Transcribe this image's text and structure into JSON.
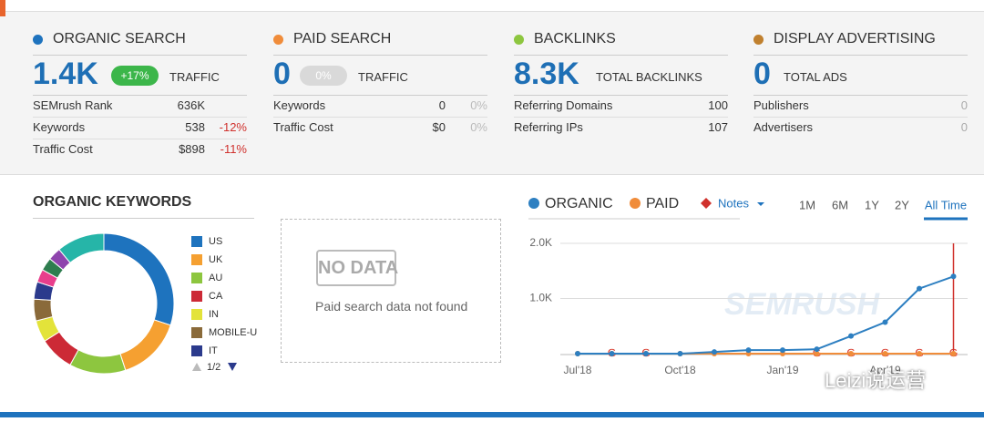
{
  "cards": [
    {
      "title": "ORGANIC SEARCH",
      "color": "#1e73be",
      "value": "1.4K",
      "badge": "+17%",
      "unit": "TRAFFIC",
      "rows": [
        [
          "SEMrush Rank",
          "636K"
        ],
        [
          "Keywords",
          "538",
          "-12%"
        ],
        [
          "Traffic Cost",
          "$898",
          "-11%"
        ]
      ]
    },
    {
      "title": "PAID SEARCH",
      "color": "#f08c3a",
      "value": "0",
      "badge": "0%",
      "unit": "TRAFFIC",
      "rows": [
        [
          "Keywords",
          "0",
          "0%"
        ],
        [
          "Traffic Cost",
          "$0",
          "0%"
        ]
      ]
    },
    {
      "title": "BACKLINKS",
      "color": "#8dc63f",
      "value": "8.3K",
      "unit": "TOTAL BACKLINKS",
      "rows": [
        [
          "Referring Domains",
          "100"
        ],
        [
          "Referring IPs",
          "107"
        ]
      ]
    },
    {
      "title": "DISPLAY ADVERTISING",
      "color": "#c0802e",
      "value": "0",
      "unit": "TOTAL ADS",
      "rows": [
        [
          "Publishers",
          "0"
        ],
        [
          "Advertisers",
          "0"
        ]
      ]
    }
  ],
  "keywords": {
    "type": "pie",
    "title": "ORGANIC KEYWORDS",
    "legend": [
      "US",
      "UK",
      "AU",
      "CA",
      "IN",
      "MOBILE-U",
      "IT"
    ],
    "page": "1/2",
    "segments": [
      30,
      15,
      13,
      8,
      5,
      5,
      4,
      3,
      3,
      3,
      11
    ],
    "colors": [
      "#1e73be",
      "#f5a031",
      "#8dc63f",
      "#cc2a36",
      "#e3e33a",
      "#8a6a3a",
      "#2b3a8c",
      "#e83e8c",
      "#2e7d4f",
      "#8e44ad",
      "#26b5a8"
    ]
  },
  "no_data": {
    "stamp": "NO DATA",
    "message": "Paid search data not found"
  },
  "trend": {
    "type": "line",
    "notes": "Notes",
    "periods": [
      "1M",
      "6M",
      "1Y",
      "2Y",
      "All Time"
    ],
    "active_period": 4,
    "categories": [
      "Jul'18",
      null,
      null,
      "Oct'18",
      null,
      null,
      "Jan'19",
      null,
      null,
      "Apr'19",
      null,
      null
    ],
    "series": [
      {
        "name": "ORGANIC",
        "color": "#2d7fc1",
        "values": [
          0,
          0,
          0,
          0,
          30,
          65,
          65,
          80,
          320,
          570,
          1180,
          1400
        ]
      },
      {
        "name": "PAID",
        "color": "#f08c3a",
        "values": [
          0,
          0,
          0,
          0,
          0,
          0,
          0,
          0,
          0,
          0,
          0,
          0
        ]
      }
    ],
    "ylim": [
      0,
      2000
    ],
    "yticks": [
      {
        "value": 1000,
        "label": "1.0K"
      },
      {
        "value": 2000,
        "label": "2.0K"
      }
    ],
    "grid": true,
    "watermark": "SEMRUSH"
  },
  "watermark": "Leizi说运营"
}
